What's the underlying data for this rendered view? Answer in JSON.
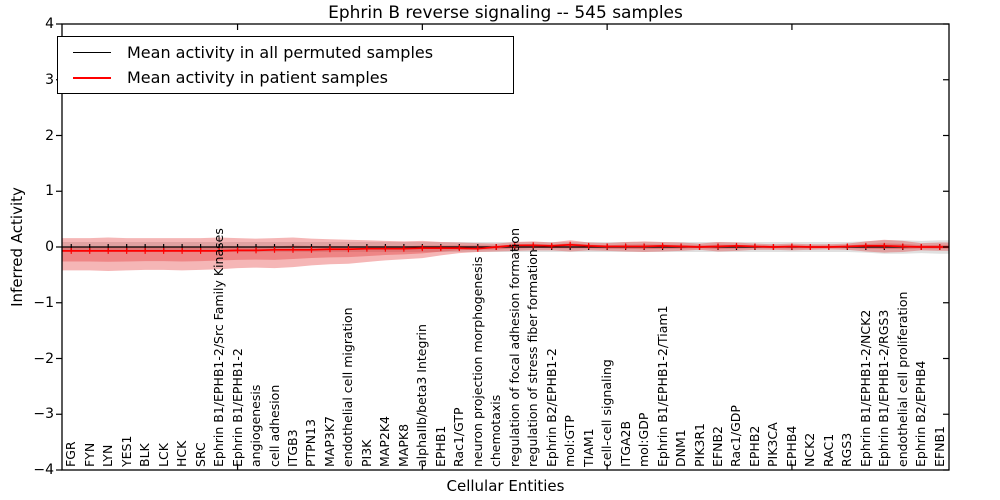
{
  "title": "Ephrin B reverse signaling -- 545 samples",
  "axes": {
    "xlabel": "Cellular Entities",
    "ylabel": "Inferred Activity"
  },
  "legend": {
    "items": [
      {
        "label": "Mean activity in all permuted samples",
        "color": "#000000"
      },
      {
        "label": "Mean activity in patient samples",
        "color": "#ff0000"
      }
    ]
  },
  "chart_data": {
    "type": "line",
    "title": "Ephrin B reverse signaling -- 545 samples",
    "n_samples": 545,
    "xlabel": "Cellular Entities",
    "ylabel": "Inferred Activity",
    "ylim": [
      -4,
      4
    ],
    "yticks": [
      4,
      3,
      2,
      1,
      0,
      -1,
      -2,
      -3,
      -4
    ],
    "ytick_labels": [
      "4",
      "3",
      "2",
      "1",
      "0",
      "−1",
      "−2",
      "−3",
      "−4"
    ],
    "grid": false,
    "legend_position": "upper left",
    "categories": [
      "FGR",
      "FYN",
      "LYN",
      "YES1",
      "BLK",
      "LCK",
      "HCK",
      "SRC",
      "Ephrin B1/EPHB1-2/Src Family Kinases",
      "Ephrin B1/EPHB1-2",
      "angiogenesis",
      "cell adhesion",
      "ITGB3",
      "PTPN13",
      "MAP3K7",
      "endothelial cell migration",
      "PI3K",
      "MAP2K4",
      "MAPK8",
      "alphaIIb/beta3 Integrin",
      "EPHB1",
      "Rac1/GTP",
      "neuron projection morphogenesis",
      "chemotaxis",
      "regulation of focal adhesion formation",
      "regulation of stress fiber formation",
      "Ephrin B2/EPHB1-2",
      "mol:GTP",
      "TIAM1",
      "cell-cell signaling",
      "ITGA2B",
      "mol:GDP",
      "Ephrin B1/EPHB1-2/Tiam1",
      "DNM1",
      "PIK3R1",
      "EFNB2",
      "Rac1/GDP",
      "EPHB2",
      "PIK3CA",
      "EPHB4",
      "NCK2",
      "RAC1",
      "RGS3",
      "Ephrin B1/EPHB1-2/NCK2",
      "Ephrin B1/EPHB1-2/RGS3",
      "endothelial cell proliferation",
      "Ephrin B2/EPHB4",
      "EFNB1"
    ],
    "series": [
      {
        "name": "Mean activity in all permuted samples",
        "color": "#000000",
        "marker": "|",
        "values": [
          0,
          0,
          0,
          0,
          0,
          0,
          0,
          0,
          0,
          0,
          0,
          0,
          0,
          0,
          0,
          0,
          0,
          0,
          0,
          0,
          0,
          0,
          0,
          0,
          0,
          0,
          0,
          0,
          0,
          0,
          0,
          0,
          0,
          0,
          0,
          0,
          0,
          0,
          0,
          0,
          0,
          0,
          0,
          0,
          0,
          0,
          0,
          0
        ]
      },
      {
        "name": "Mean activity in patient samples",
        "color": "#ff0000",
        "marker": "|",
        "values": [
          -0.07,
          -0.07,
          -0.07,
          -0.07,
          -0.07,
          -0.07,
          -0.07,
          -0.07,
          -0.07,
          -0.06,
          -0.06,
          -0.05,
          -0.05,
          -0.05,
          -0.04,
          -0.04,
          -0.03,
          -0.03,
          -0.03,
          -0.02,
          -0.02,
          -0.02,
          -0.03,
          0.0,
          0.03,
          0.03,
          0.02,
          0.04,
          0.02,
          0.01,
          0.01,
          0.01,
          0.02,
          0.01,
          0.0,
          0.01,
          0.02,
          0.01,
          0.0,
          0.01,
          0.0,
          0.0,
          0.01,
          0.02,
          0.02,
          0.01,
          0.0,
          0.0
        ]
      }
    ],
    "bands": [
      {
        "name": "permuted-samples-spread",
        "color": "#999999",
        "opacity": 0.3,
        "upper": [
          0.09,
          0.09,
          0.09,
          0.09,
          0.09,
          0.09,
          0.09,
          0.09,
          0.09,
          0.09,
          0.09,
          0.09,
          0.09,
          0.09,
          0.09,
          0.09,
          0.09,
          0.09,
          0.09,
          0.09,
          0.09,
          0.09,
          0.09,
          0.09,
          0.09,
          0.09,
          0.09,
          0.09,
          0.09,
          0.09,
          0.09,
          0.09,
          0.09,
          0.09,
          0.09,
          0.09,
          0.09,
          0.09,
          0.09,
          0.09,
          0.09,
          0.09,
          0.09,
          0.1,
          0.12,
          0.12,
          0.11,
          0.12
        ],
        "lower": [
          -0.09,
          -0.09,
          -0.09,
          -0.09,
          -0.09,
          -0.09,
          -0.09,
          -0.09,
          -0.09,
          -0.09,
          -0.09,
          -0.09,
          -0.09,
          -0.09,
          -0.09,
          -0.09,
          -0.09,
          -0.09,
          -0.09,
          -0.09,
          -0.09,
          -0.09,
          -0.09,
          -0.09,
          -0.09,
          -0.09,
          -0.09,
          -0.09,
          -0.09,
          -0.09,
          -0.09,
          -0.09,
          -0.09,
          -0.09,
          -0.09,
          -0.09,
          -0.09,
          -0.09,
          -0.09,
          -0.09,
          -0.09,
          -0.09,
          -0.09,
          -0.1,
          -0.12,
          -0.12,
          -0.11,
          -0.12
        ]
      },
      {
        "name": "patient-samples-spread",
        "color": "#e02020",
        "opacity": 0.33,
        "inner_scale": 0.45,
        "upper": [
          0.16,
          0.16,
          0.17,
          0.16,
          0.16,
          0.16,
          0.16,
          0.16,
          0.17,
          0.16,
          0.15,
          0.16,
          0.17,
          0.15,
          0.14,
          0.13,
          0.12,
          0.11,
          0.1,
          0.11,
          0.09,
          0.08,
          0.07,
          0.06,
          0.09,
          0.1,
          0.08,
          0.12,
          0.08,
          0.07,
          0.09,
          0.1,
          0.09,
          0.08,
          0.06,
          0.09,
          0.08,
          0.06,
          0.05,
          0.06,
          0.05,
          0.05,
          0.06,
          0.1,
          0.13,
          0.11,
          0.07,
          0.08
        ],
        "lower": [
          -0.42,
          -0.42,
          -0.43,
          -0.42,
          -0.41,
          -0.41,
          -0.42,
          -0.41,
          -0.4,
          -0.38,
          -0.37,
          -0.38,
          -0.36,
          -0.33,
          -0.31,
          -0.3,
          -0.27,
          -0.24,
          -0.22,
          -0.2,
          -0.15,
          -0.11,
          -0.09,
          -0.08,
          -0.07,
          -0.06,
          -0.06,
          -0.08,
          -0.06,
          -0.07,
          -0.08,
          -0.09,
          -0.08,
          -0.07,
          -0.05,
          -0.08,
          -0.07,
          -0.05,
          -0.05,
          -0.06,
          -0.05,
          -0.04,
          -0.05,
          -0.08,
          -0.1,
          -0.09,
          -0.06,
          -0.07
        ]
      }
    ]
  }
}
